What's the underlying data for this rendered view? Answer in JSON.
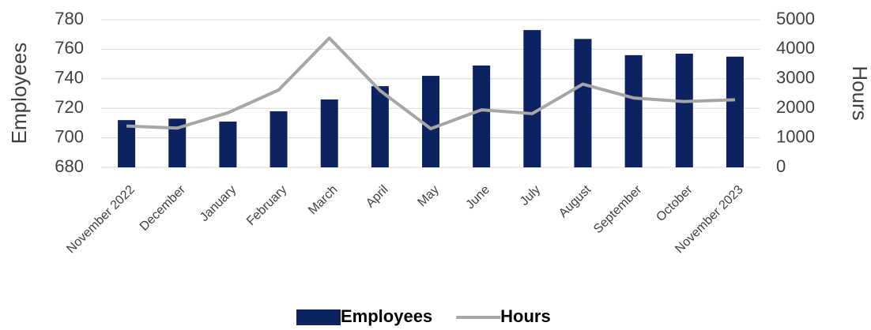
{
  "chart_data": {
    "type": "bar",
    "categories": [
      "November 2022",
      "December",
      "January",
      "February",
      "March",
      "April",
      "May",
      "June",
      "July",
      "August",
      "September",
      "October",
      "November 2023"
    ],
    "series": [
      {
        "name": "Employees",
        "type": "bar",
        "color": "#0d2260",
        "values": [
          712,
          713,
          711,
          718,
          726,
          735,
          742,
          749,
          773,
          767,
          756,
          757,
          755
        ]
      },
      {
        "name": "Hours",
        "type": "line",
        "axis": "y2",
        "color": "#a6a6a6",
        "values": [
          1400,
          1330,
          1850,
          2620,
          4380,
          2600,
          1310,
          1950,
          1820,
          2820,
          2350,
          2230,
          2290
        ]
      }
    ],
    "ylabel": "Employees",
    "y2label": "Hours",
    "ylim": [
      680,
      780
    ],
    "yticks": [
      680,
      700,
      720,
      740,
      760,
      780
    ],
    "y2lim": [
      0,
      5000
    ],
    "y2ticks": [
      0,
      1000,
      2000,
      3000,
      4000,
      5000
    ],
    "grid": true,
    "legend": "bottom"
  }
}
